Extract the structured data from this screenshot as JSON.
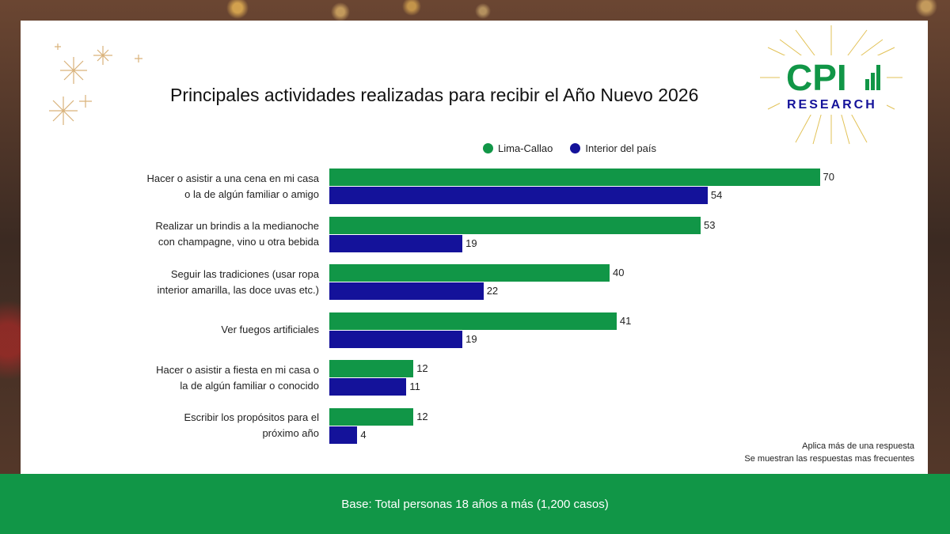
{
  "logo": {
    "main": "CPI",
    "sub": "RESEARCH"
  },
  "chart_data": {
    "type": "bar",
    "orientation": "horizontal",
    "title": "Principales actividades realizadas para recibir el Año Nuevo 2026",
    "categories": [
      [
        "Hacer o asistir a una cena en mi casa",
        "o la de algún familiar o amigo"
      ],
      [
        "Realizar un brindis a la medianoche",
        "con champagne, vino u otra bebida"
      ],
      [
        "Seguir las tradiciones (usar ropa",
        "interior amarilla, las doce uvas etc.)"
      ],
      [
        "Ver fuegos artificiales"
      ],
      [
        "Hacer o asistir a fiesta en mi casa o",
        "la de algún familiar o conocido"
      ],
      [
        "Escribir los propósitos para el",
        "próximo año"
      ]
    ],
    "series": [
      {
        "name": "Lima-Callao",
        "color": "#119647",
        "values": [
          70,
          53,
          40,
          41,
          12,
          12
        ]
      },
      {
        "name": "Interior del país",
        "color": "#14129a",
        "values": [
          54,
          19,
          22,
          19,
          11,
          4
        ]
      }
    ],
    "xlim": [
      0,
      100
    ],
    "grid": false,
    "legend_position": "top"
  },
  "notes": [
    "Aplica más de una respuesta",
    "Se muestran las respuestas mas frecuentes"
  ],
  "footer": {
    "base": "Base: Total personas 18 años a más (1,200 casos)"
  }
}
